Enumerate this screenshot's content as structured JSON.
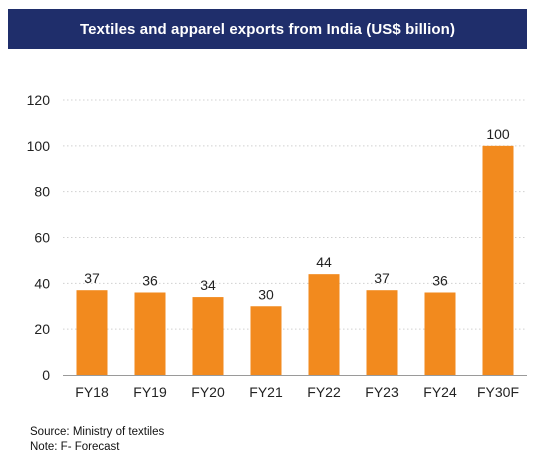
{
  "chart_data": {
    "type": "bar",
    "title": "Textiles and apparel exports from India (US$ billion)",
    "categories": [
      "FY18",
      "FY19",
      "FY20",
      "FY21",
      "FY22",
      "FY23",
      "FY24",
      "FY30F"
    ],
    "values": [
      37,
      36,
      34,
      30,
      44,
      37,
      36,
      100
    ],
    "data_labels": [
      "37",
      "36",
      "34",
      "30",
      "44",
      "37",
      "36",
      "100"
    ],
    "ylim": [
      0,
      120
    ],
    "yticks": [
      0,
      20,
      40,
      60,
      80,
      100,
      120
    ],
    "grid": true,
    "legend": "none",
    "colors": {
      "bar": "#f28a1e",
      "title_background": "#1f2e6b",
      "gridline": "#d0d0d0"
    }
  },
  "footer": {
    "source": "Source: Ministry of textiles",
    "note": "Note: F- Forecast"
  }
}
